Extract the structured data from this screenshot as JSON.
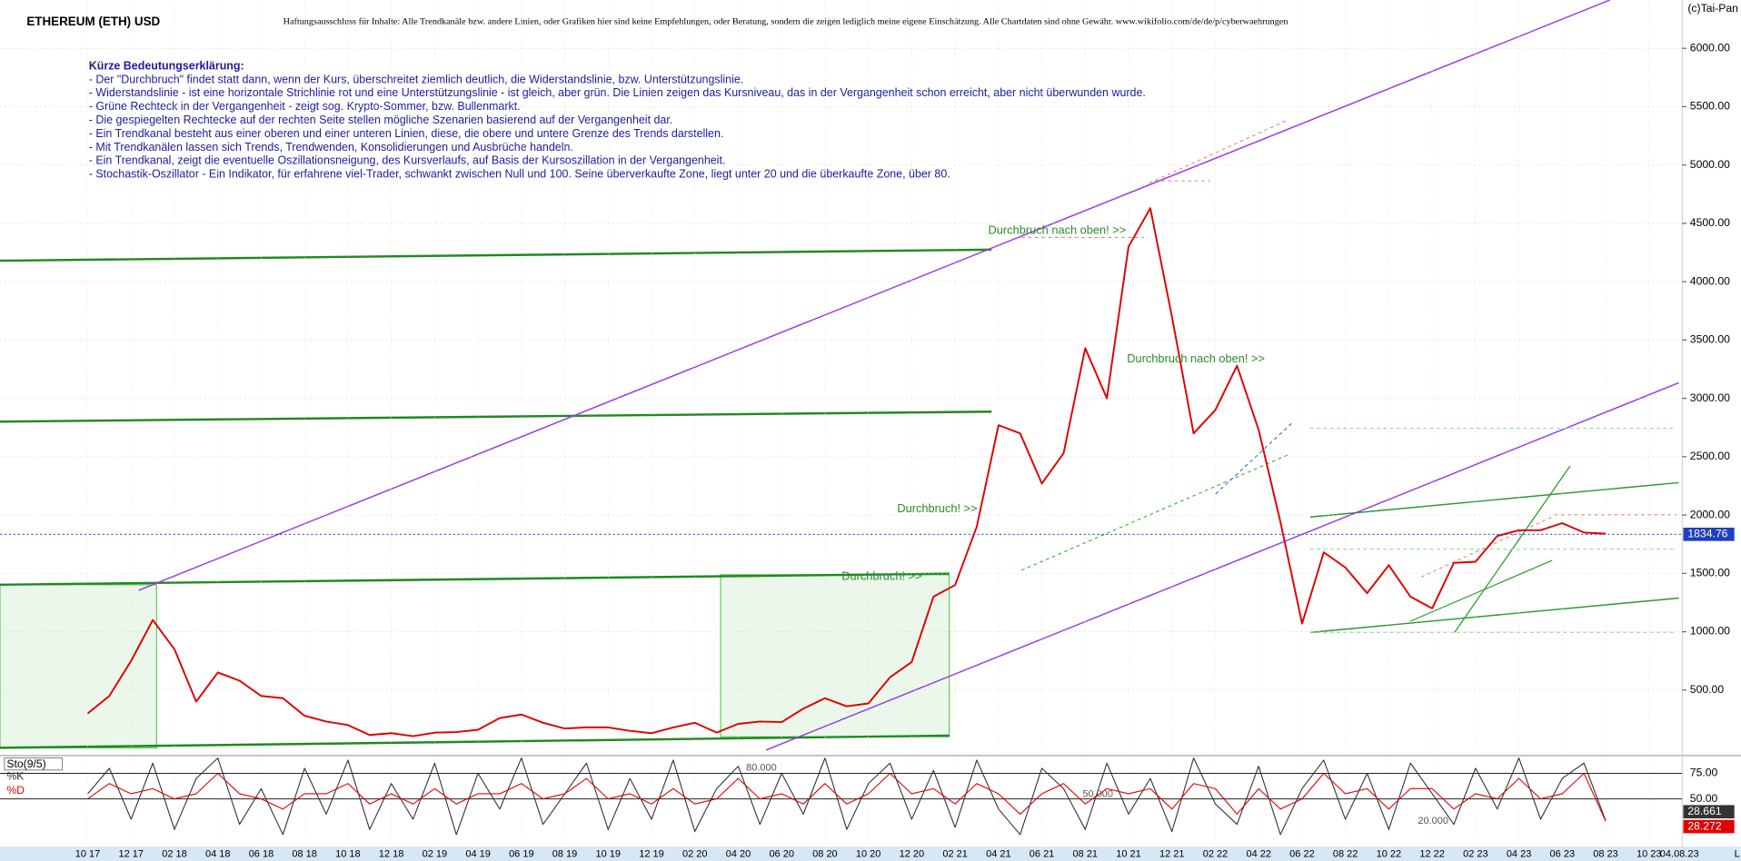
{
  "header": {
    "title": "ETHEREUM (ETH) USD",
    "disclaimer": "Haftungsausschluss für Inhalte: Alle Trendkanäle bzw. andere Linien, oder Grafiken hier sind keine Empfehlungen, oder Beratung, sondern die zeigen lediglich meine eigene Einschätzung. Alle Chartdaten sind ohne Gewähr.  www.wikifolio.com/de/de/p/cyberwaehrungen",
    "copyright": "(c)Tai-Pan"
  },
  "notes": {
    "heading": "Kürze Bedeutungserklärung:",
    "lines": [
      "- Der \"Durchbruch\" findet statt dann, wenn der Kurs, überschreitet ziemlich deutlich, die Widerstandslinie, bzw. Unterstützungslinie.",
      "- Widerstandslinie - ist eine horizontale Strichlinie rot und eine Unterstützungslinie - ist gleich, aber grün. Die Linien zeigen das Kursniveau, das in der Vergangenheit schon erreicht, aber nicht überwunden wurde.",
      "- Grüne Rechteck in der Vergangenheit - zeigt sog. Krypto-Sommer, bzw. Bullenmarkt.",
      "- Die gespiegelten Rechtecke auf der rechten Seite stellen mögliche Szenarien basierend auf der Vergangenheit dar.",
      "- Ein Trendkanal besteht aus einer oberen und einer unteren Linien, diese, die obere und untere Grenze des Trends darstellen.",
      "- Mit Trendkanälen lassen sich Trends, Trendwenden, Konsolidierungen und Ausbrüche handeln.",
      "- Ein Trendkanal, zeigt die eventuelle Oszillationsneigung, des Kursverlaufs, auf Basis der Kursoszillation in der Vergangenheit.",
      "- Stochastik-Oszillator - Ein Indikator, für erfahrene viel-Trader, schwankt zwischen Null und 100. Seine überverkaufte Zone, liegt unter 20 und die überkaufte Zone, über 80."
    ]
  },
  "footer": {
    "date": "04.08.23",
    "marker": "L"
  },
  "chart_data": [
    {
      "type": "line",
      "categories": [
        "10 17",
        null,
        "12 17",
        null,
        "02 18",
        null,
        "04 18",
        null,
        "06 18",
        null,
        "08 18",
        null,
        "10 18",
        null,
        "12 18",
        null,
        "02 19",
        null,
        "04 19",
        null,
        "06 19",
        null,
        "08 19",
        null,
        "10 19",
        null,
        "12 19",
        null,
        "02 20",
        null,
        "04 20",
        null,
        "06 20",
        null,
        "08 20",
        null,
        "10 20",
        null,
        "12 20",
        null,
        "02 21",
        null,
        "04 21",
        null,
        "06 21",
        null,
        "08 21",
        null,
        "10 21",
        null,
        "12 21",
        null,
        "02 22",
        null,
        "04 22",
        null,
        "06 22",
        null,
        "08 22",
        null,
        "10 22",
        null,
        "12 22",
        null,
        "02 23",
        null,
        "04 23",
        null,
        "06 23",
        null,
        "08 23",
        null,
        "10 23"
      ],
      "values": [
        300,
        450,
        750,
        1100,
        850,
        400,
        650,
        580,
        450,
        430,
        280,
        230,
        200,
        115,
        130,
        105,
        135,
        140,
        160,
        260,
        290,
        220,
        170,
        180,
        180,
        150,
        130,
        180,
        220,
        135,
        210,
        230,
        225,
        340,
        430,
        360,
        385,
        610,
        740,
        1300,
        1400,
        1900,
        2770,
        2700,
        2270,
        2530,
        3430,
        3000,
        4300,
        4630,
        3700,
        2700,
        2900,
        3280,
        2730,
        1940,
        1070,
        1680,
        1550,
        1330,
        1570,
        1300,
        1200,
        1590,
        1600,
        1820,
        1870,
        1870,
        1930,
        1850,
        1840,
        null,
        null
      ],
      "color": "#e00000",
      "ylim": [
        0,
        6400
      ],
      "yticks": [
        {
          "value": 500,
          "label": "500.00"
        },
        {
          "value": 1000,
          "label": "1000.00"
        },
        {
          "value": 1500,
          "label": "1500.00"
        },
        {
          "value": 2000,
          "label": "2000.00"
        },
        {
          "value": 2500,
          "label": "2500.00"
        },
        {
          "value": 3000,
          "label": "3000.00"
        },
        {
          "value": 3500,
          "label": "3500.00"
        },
        {
          "value": 4000,
          "label": "4000.00"
        },
        {
          "value": 4500,
          "label": "4500.00"
        },
        {
          "value": 5000,
          "label": "5000.00"
        },
        {
          "value": 5500,
          "label": "5500.00"
        },
        {
          "value": 6000,
          "label": "6000.00"
        }
      ],
      "grid": true,
      "last_value": 1834.76,
      "annotations": [
        "Durchbruch nach oben! >>",
        "Durchbruch nach oben! >>",
        "Durchbruch! >>",
        "Durchbruch! >>"
      ]
    },
    {
      "type": "line",
      "title": "Sto(9/5)",
      "series": [
        {
          "name": "%K",
          "color": "#333333",
          "values": [
            55,
            80,
            30,
            85,
            20,
            70,
            90,
            25,
            60,
            15,
            80,
            35,
            88,
            20,
            65,
            30,
            85,
            15,
            75,
            40,
            90,
            25,
            55,
            85,
            20,
            70,
            30,
            88,
            18,
            60,
            82,
            25,
            75,
            35,
            90,
            20,
            65,
            85,
            30,
            78,
            22,
            88,
            40,
            15,
            80,
            60,
            20,
            85,
            35,
            70,
            18,
            90,
            45,
            25,
            82,
            15,
            60,
            88,
            30,
            75,
            20,
            85,
            55,
            25,
            80,
            40,
            90,
            30,
            70,
            85,
            28.661,
            null,
            null
          ]
        },
        {
          "name": "%D",
          "color": "#e00000",
          "values": [
            50,
            65,
            55,
            60,
            50,
            55,
            75,
            55,
            50,
            40,
            55,
            55,
            65,
            45,
            55,
            45,
            60,
            45,
            55,
            55,
            65,
            50,
            55,
            70,
            50,
            55,
            45,
            60,
            45,
            50,
            70,
            50,
            55,
            45,
            65,
            45,
            55,
            75,
            55,
            60,
            45,
            65,
            55,
            35,
            55,
            65,
            45,
            60,
            55,
            60,
            40,
            65,
            60,
            35,
            60,
            40,
            50,
            75,
            55,
            60,
            40,
            60,
            60,
            40,
            55,
            50,
            70,
            50,
            55,
            75,
            28.272,
            null,
            null
          ]
        }
      ],
      "ylim": [
        8,
        92
      ],
      "yticks": [
        {
          "value": 75,
          "label": "75.00"
        },
        {
          "value": 50,
          "label": "50.00"
        }
      ],
      "grid": true,
      "last_values": [
        28.661,
        28.272
      ],
      "annotations": [
        "80.000",
        "50.000",
        "20.000"
      ]
    }
  ]
}
